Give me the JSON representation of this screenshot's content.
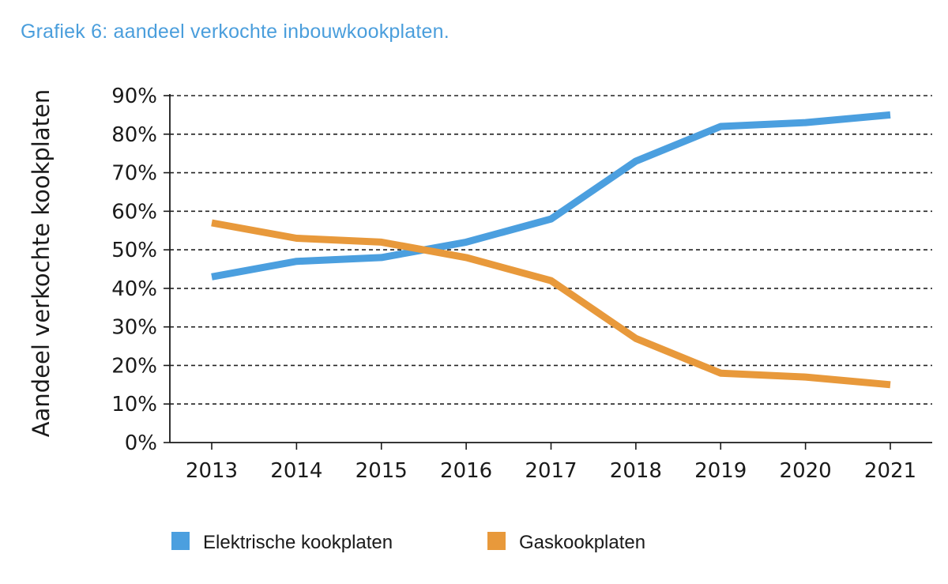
{
  "title": "Grafiek 6: aandeel verkochte inbouwkookplaten.",
  "colors": {
    "title": "#4a9edc",
    "elektrisch": "#4b9fdf",
    "gas": "#e8993b",
    "axis": "#1a1a1a"
  },
  "chart_data": {
    "type": "line",
    "title": "Grafiek 6: aandeel verkochte inbouwkookplaten.",
    "xlabel": "",
    "ylabel": "Aandeel verkochte kookplaten",
    "x": [
      "2013",
      "2014",
      "2015",
      "2016",
      "2017",
      "2018",
      "2019",
      "2020",
      "2021"
    ],
    "ylim": [
      0,
      90
    ],
    "yticks": [
      "0%",
      "10%",
      "20%",
      "30%",
      "40%",
      "50%",
      "60%",
      "70%",
      "80%",
      "90%"
    ],
    "grid": "horizontal-dashed",
    "legend_position": "bottom",
    "series": [
      {
        "name": "Elektrische kookplaten",
        "color": "#4b9fdf",
        "values": [
          43,
          47,
          48,
          52,
          58,
          73,
          82,
          83,
          85
        ]
      },
      {
        "name": "Gaskookplaten",
        "color": "#e8993b",
        "values": [
          57,
          53,
          52,
          48,
          42,
          27,
          18,
          17,
          15
        ]
      }
    ]
  }
}
